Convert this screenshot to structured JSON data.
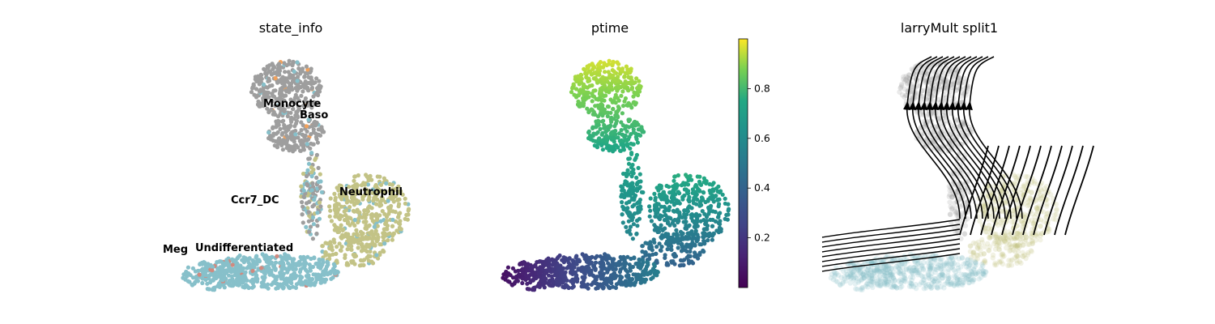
{
  "chart_data": [
    {
      "type": "scatter",
      "title": "state_info",
      "legend": "on data",
      "colors": {
        "Monocyte": "#9e9e9e",
        "Baso": "#f0a15c",
        "Neutrophil": "#c3c386",
        "Undifferentiated": "#87c0ca",
        "Meg": "#d08a80",
        "Ccr7_DC": "#bdbdbd"
      },
      "labels": [
        {
          "text": "Monocyte"
        },
        {
          "text": "Baso"
        },
        {
          "text": "Neutrophil"
        },
        {
          "text": "Ccr7_DC"
        },
        {
          "text": "Meg"
        },
        {
          "text": "Undifferentiated"
        }
      ]
    },
    {
      "type": "scatter",
      "title": "ptime",
      "colormap": "viridis",
      "colorbar": {
        "ticks": [
          "0.2",
          "0.4",
          "0.6",
          "0.8"
        ],
        "range": [
          0.0,
          1.0
        ]
      }
    },
    {
      "type": "streamplot",
      "title": "larryMult split1"
    }
  ]
}
